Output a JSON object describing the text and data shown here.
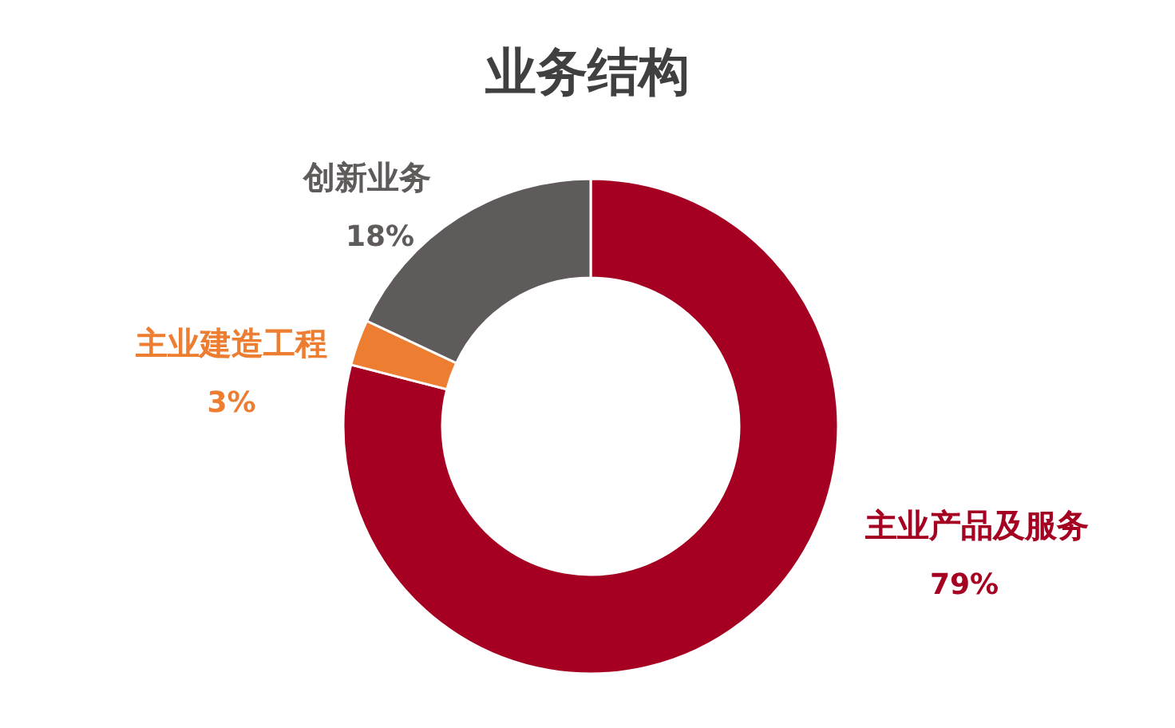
{
  "chart_data": {
    "type": "donut",
    "title": "业务结构",
    "categories": [
      "主业产品及服务",
      "主业建造工程",
      "创新业务"
    ],
    "values": [
      79,
      3,
      18
    ],
    "colors": [
      "#a50021",
      "#ed7d31",
      "#5f5b5a"
    ],
    "value_labels": [
      "79%",
      "3%",
      "18%"
    ]
  }
}
